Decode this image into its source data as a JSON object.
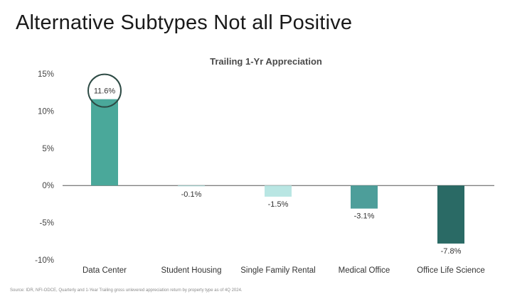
{
  "page": {
    "title": "Alternative Subtypes Not all Positive",
    "source": "Source: IDR, NFI-ODCE, Quarterly and 1-Year Trailing gross unlevered appreciation return by property type as of 4Q 2024."
  },
  "chart_data": {
    "type": "bar",
    "title": "Trailing 1-Yr Appreciation",
    "xlabel": "",
    "ylabel": "",
    "categories": [
      "Data Center",
      "Student Housing",
      "Single Family Rental",
      "Medical Office",
      "Office Life Science"
    ],
    "values": [
      11.6,
      -0.1,
      -1.5,
      -3.1,
      -7.8
    ],
    "value_labels": [
      "11.6%",
      "-0.1%",
      "-1.5%",
      "-3.1%",
      "-7.8%"
    ],
    "colors": [
      "#4aa89a",
      "#a9dcd8",
      "#b9e6e3",
      "#4d9e9a",
      "#2a6a65"
    ],
    "ylim": [
      -10,
      15
    ],
    "yticks": [
      15,
      10,
      5,
      0,
      -5,
      -10
    ],
    "ytick_labels": [
      "15%",
      "10%",
      "5%",
      "0%",
      "-5%",
      "-10%"
    ],
    "grid": false,
    "highlight_index": 0
  }
}
